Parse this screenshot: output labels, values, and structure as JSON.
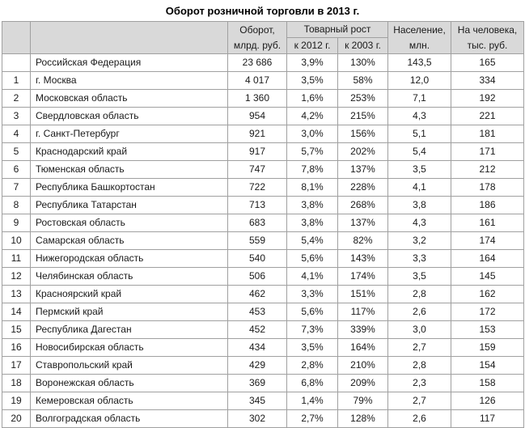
{
  "title": "Оборот розничной торговли в 2013 г.",
  "header": {
    "rank": "",
    "region": "",
    "turnover_l1": "Оборот,",
    "turnover_l2": "млрд. руб.",
    "growth_group": "Товарный рост",
    "growth_2012": "к 2012 г.",
    "growth_2003": "к 2003 г.",
    "population_l1": "Население,",
    "population_l2": "млн.",
    "per_capita_l1": "На человека,",
    "per_capita_l2": "тыс. руб."
  },
  "colors": {
    "page_bg": "#ffffff",
    "header_bg": "#d9d9d9",
    "grid_border": "#a0a0a0",
    "text": "#1a1a1a"
  },
  "chart_data": {
    "type": "table",
    "title": "Оборот розничной торговли в 2013 г.",
    "columns": [
      "",
      "",
      "Оборот, млрд. руб.",
      "Товарный рост к 2012 г.",
      "Товарный рост к 2003 г.",
      "Население, млн.",
      "На человека, тыс. руб."
    ],
    "rows": [
      [
        "",
        "Российская Федерация",
        "23 686",
        "3,9%",
        "130%",
        "143,5",
        "165"
      ],
      [
        "1",
        "г. Москва",
        "4 017",
        "3,5%",
        "58%",
        "12,0",
        "334"
      ],
      [
        "2",
        "Московская область",
        "1 360",
        "1,6%",
        "253%",
        "7,1",
        "192"
      ],
      [
        "3",
        "Свердловская область",
        "954",
        "4,2%",
        "215%",
        "4,3",
        "221"
      ],
      [
        "4",
        "г. Санкт-Петербург",
        "921",
        "3,0%",
        "156%",
        "5,1",
        "181"
      ],
      [
        "5",
        "Краснодарский край",
        "917",
        "5,7%",
        "202%",
        "5,4",
        "171"
      ],
      [
        "6",
        "Тюменская область",
        "747",
        "7,8%",
        "137%",
        "3,5",
        "212"
      ],
      [
        "7",
        "Республика Башкортостан",
        "722",
        "8,1%",
        "228%",
        "4,1",
        "178"
      ],
      [
        "8",
        "Республика Татарстан",
        "713",
        "3,8%",
        "268%",
        "3,8",
        "186"
      ],
      [
        "9",
        "Ростовская область",
        "683",
        "3,8%",
        "137%",
        "4,3",
        "161"
      ],
      [
        "10",
        "Самарская область",
        "559",
        "5,4%",
        "82%",
        "3,2",
        "174"
      ],
      [
        "11",
        "Нижегородская область",
        "540",
        "5,6%",
        "143%",
        "3,3",
        "164"
      ],
      [
        "12",
        "Челябинская область",
        "506",
        "4,1%",
        "174%",
        "3,5",
        "145"
      ],
      [
        "13",
        "Красноярский край",
        "462",
        "3,3%",
        "151%",
        "2,8",
        "162"
      ],
      [
        "14",
        "Пермский край",
        "453",
        "5,6%",
        "117%",
        "2,6",
        "172"
      ],
      [
        "15",
        "Республика Дагестан",
        "452",
        "7,3%",
        "339%",
        "3,0",
        "153"
      ],
      [
        "16",
        "Новосибирская область",
        "434",
        "3,5%",
        "164%",
        "2,7",
        "159"
      ],
      [
        "17",
        "Ставропольский край",
        "429",
        "2,8%",
        "210%",
        "2,8",
        "154"
      ],
      [
        "18",
        "Воронежская область",
        "369",
        "6,8%",
        "209%",
        "2,3",
        "158"
      ],
      [
        "19",
        "Кемеровская область",
        "345",
        "1,4%",
        "79%",
        "2,7",
        "126"
      ],
      [
        "20",
        "Волгоградская область",
        "302",
        "2,7%",
        "128%",
        "2,6",
        "117"
      ]
    ]
  }
}
